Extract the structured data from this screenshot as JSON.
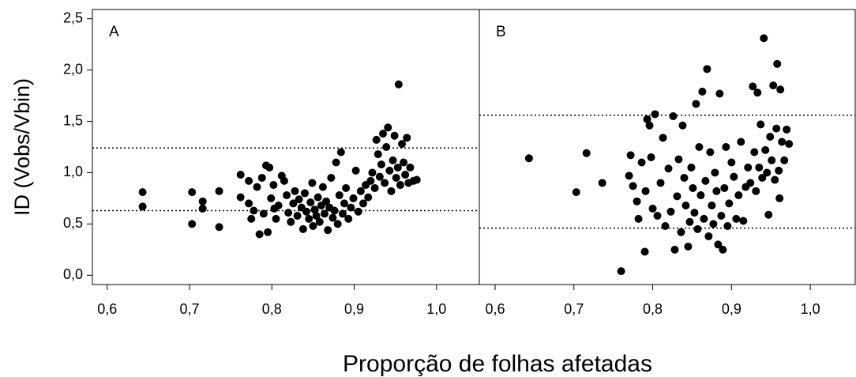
{
  "chart_data": [
    {
      "type": "scatter",
      "title": "A",
      "ylabel": "ID (Vobs/Vbin)",
      "xlabel": "Proporção de folhas afetadas",
      "color": "#000000",
      "xlim": [
        0.582,
        1.052
      ],
      "ylim": [
        -0.09,
        2.59
      ],
      "xticks": [
        {
          "value": 0.6,
          "label": "0,6"
        },
        {
          "value": 0.7,
          "label": "0,7"
        },
        {
          "value": 0.8,
          "label": "0,8"
        },
        {
          "value": 0.9,
          "label": "0,9"
        },
        {
          "value": 1.0,
          "label": "1,0"
        }
      ],
      "yticks": [
        {
          "value": 0,
          "label": "0,0"
        },
        {
          "value": 0.5,
          "label": "0,5"
        },
        {
          "value": 1.0,
          "label": "1,0"
        },
        {
          "value": 1.5,
          "label": "1,5"
        },
        {
          "value": 2.0,
          "label": "2,0"
        },
        {
          "value": 2.5,
          "label": "2,5"
        }
      ],
      "hlines": [
        1.24,
        0.63
      ],
      "x": [
        0.643,
        0.643,
        0.703,
        0.703,
        0.716,
        0.716,
        0.736,
        0.736,
        0.762,
        0.762,
        0.772,
        0.772,
        0.775,
        0.778,
        0.782,
        0.785,
        0.788,
        0.79,
        0.793,
        0.795,
        0.797,
        0.799,
        0.802,
        0.803,
        0.805,
        0.808,
        0.812,
        0.815,
        0.818,
        0.82,
        0.823,
        0.826,
        0.828,
        0.831,
        0.833,
        0.836,
        0.838,
        0.84,
        0.842,
        0.845,
        0.847,
        0.849,
        0.85,
        0.852,
        0.854,
        0.856,
        0.858,
        0.86,
        0.862,
        0.864,
        0.866,
        0.868,
        0.87,
        0.872,
        0.874,
        0.876,
        0.878,
        0.88,
        0.882,
        0.884,
        0.886,
        0.888,
        0.89,
        0.893,
        0.896,
        0.899,
        0.902,
        0.905,
        0.908,
        0.911,
        0.914,
        0.917,
        0.92,
        0.922,
        0.925,
        0.927,
        0.929,
        0.931,
        0.933,
        0.935,
        0.937,
        0.939,
        0.941,
        0.943,
        0.945,
        0.947,
        0.949,
        0.951,
        0.953,
        0.954,
        0.956,
        0.958,
        0.96,
        0.962,
        0.964,
        0.966,
        0.968,
        0.972,
        0.976
      ],
      "values": [
        0.81,
        0.67,
        0.81,
        0.5,
        0.72,
        0.65,
        0.82,
        0.47,
        0.98,
        0.76,
        0.92,
        0.7,
        0.55,
        0.63,
        0.86,
        0.4,
        0.95,
        0.6,
        1.07,
        0.42,
        1.05,
        0.75,
        0.88,
        0.65,
        0.55,
        0.68,
        0.97,
        0.92,
        0.78,
        0.61,
        0.52,
        0.7,
        0.82,
        0.58,
        0.74,
        0.66,
        0.45,
        0.8,
        0.62,
        0.55,
        0.71,
        0.9,
        0.48,
        0.64,
        0.58,
        0.76,
        0.52,
        0.68,
        0.86,
        0.6,
        0.72,
        0.44,
        0.66,
        0.95,
        0.56,
        0.63,
        1.1,
        0.5,
        0.78,
        1.2,
        0.6,
        0.7,
        0.85,
        0.55,
        0.66,
        0.75,
        1.02,
        0.62,
        0.82,
        0.7,
        0.88,
        0.76,
        0.92,
        1.0,
        0.85,
        1.32,
        1.18,
        0.96,
        1.08,
        1.38,
        0.9,
        1.25,
        1.44,
        1.02,
        0.82,
        1.12,
        1.36,
        0.95,
        1.05,
        1.86,
        0.88,
        1.28,
        1.1,
        0.98,
        1.34,
        0.9,
        1.05,
        0.92,
        0.93
      ]
    },
    {
      "type": "scatter",
      "title": "B",
      "color": "#000000",
      "xlim": [
        0.58,
        1.057
      ],
      "ylim": [
        -0.09,
        2.59
      ],
      "xticks": [
        {
          "value": 0.6,
          "label": "0,6"
        },
        {
          "value": 0.7,
          "label": "0,7"
        },
        {
          "value": 0.8,
          "label": "0,8"
        },
        {
          "value": 0.9,
          "label": "0,9"
        },
        {
          "value": 1.0,
          "label": "1,0"
        }
      ],
      "hlines": [
        1.56,
        0.46
      ],
      "x": [
        0.643,
        0.703,
        0.716,
        0.736,
        0.76,
        0.77,
        0.772,
        0.775,
        0.78,
        0.782,
        0.786,
        0.79,
        0.791,
        0.793,
        0.796,
        0.798,
        0.8,
        0.803,
        0.806,
        0.81,
        0.813,
        0.816,
        0.82,
        0.823,
        0.826,
        0.828,
        0.831,
        0.833,
        0.836,
        0.838,
        0.84,
        0.842,
        0.845,
        0.847,
        0.849,
        0.851,
        0.853,
        0.855,
        0.857,
        0.859,
        0.861,
        0.863,
        0.865,
        0.867,
        0.869,
        0.871,
        0.873,
        0.875,
        0.877,
        0.879,
        0.881,
        0.883,
        0.885,
        0.887,
        0.889,
        0.891,
        0.893,
        0.895,
        0.897,
        0.9,
        0.903,
        0.906,
        0.909,
        0.912,
        0.915,
        0.918,
        0.921,
        0.924,
        0.927,
        0.929,
        0.931,
        0.933,
        0.935,
        0.937,
        0.939,
        0.941,
        0.943,
        0.945,
        0.947,
        0.949,
        0.951,
        0.953,
        0.955,
        0.957,
        0.958,
        0.96,
        0.961,
        0.962,
        0.964,
        0.967,
        0.97,
        0.973
      ],
      "values": [
        1.14,
        0.81,
        1.19,
        0.9,
        0.04,
        0.97,
        1.17,
        0.87,
        0.72,
        0.55,
        1.1,
        0.23,
        0.82,
        1.52,
        1.46,
        1.15,
        0.65,
        1.57,
        0.58,
        0.9,
        1.34,
        0.48,
        1.04,
        0.62,
        1.55,
        0.25,
        0.77,
        1.13,
        0.42,
        1.46,
        0.95,
        0.68,
        0.28,
        0.52,
        1.05,
        0.85,
        0.61,
        1.67,
        0.45,
        1.25,
        0.78,
        1.79,
        0.55,
        0.92,
        2.01,
        0.38,
        1.2,
        0.68,
        0.5,
        1.0,
        0.82,
        0.3,
        1.77,
        0.58,
        0.25,
        0.85,
        1.25,
        0.48,
        0.7,
        1.1,
        0.96,
        0.55,
        0.78,
        1.3,
        0.53,
        0.86,
        1.05,
        0.9,
        1.84,
        1.2,
        0.82,
        1.78,
        1.05,
        1.47,
        0.95,
        2.31,
        1.22,
        1.0,
        0.59,
        1.35,
        1.12,
        1.85,
        0.93,
        1.43,
        2.06,
        1.02,
        0.75,
        1.81,
        1.3,
        1.12,
        1.42,
        1.28
      ]
    }
  ]
}
